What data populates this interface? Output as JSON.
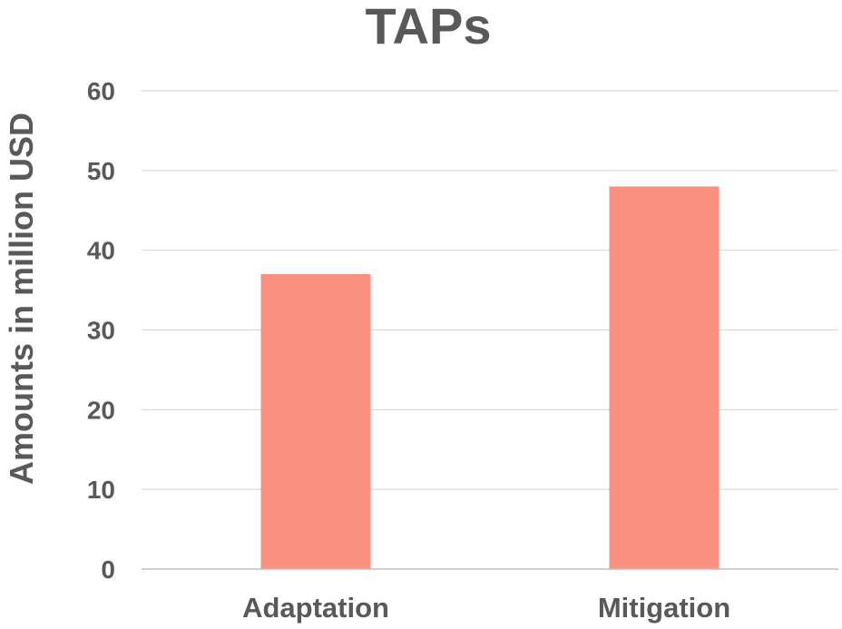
{
  "chart_data": {
    "type": "bar",
    "title": "TAPs",
    "xlabel": "",
    "ylabel": "Amounts  in million USD",
    "categories": [
      "Adaptation",
      "Mitigation"
    ],
    "values": [
      37,
      48
    ],
    "ylim": [
      0,
      60
    ],
    "yticks": [
      0,
      10,
      20,
      30,
      40,
      50,
      60
    ],
    "grid": true,
    "legend": "none",
    "bar_color": "#f9917e"
  }
}
